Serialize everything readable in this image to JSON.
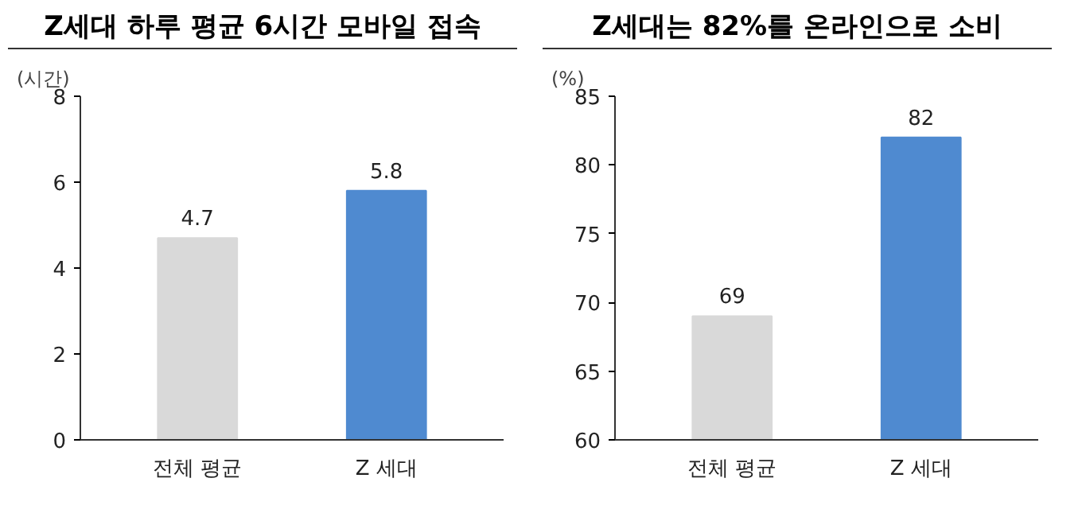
{
  "chart_data": [
    {
      "type": "bar",
      "title": "Z세대 하루 평균 6시간 모바일 접속",
      "ylabel": "(시간)",
      "categories": [
        "전체 평균",
        "Z 세대"
      ],
      "values": [
        4.7,
        5.8
      ],
      "colors": [
        "#d9d9d9",
        "#4f8ad0"
      ],
      "ylim": [
        0,
        8
      ],
      "yticks": [
        0,
        2,
        4,
        6,
        8
      ],
      "data_labels": true
    },
    {
      "type": "bar",
      "title": "Z세대는 82%를 온라인으로 소비",
      "ylabel": "(%)",
      "categories": [
        "전체 평균",
        "Z 세대"
      ],
      "values": [
        69,
        82
      ],
      "colors": [
        "#d9d9d9",
        "#4f8ad0"
      ],
      "ylim": [
        60,
        85
      ],
      "yticks": [
        60,
        65,
        70,
        75,
        80,
        85
      ],
      "data_labels": true
    }
  ]
}
